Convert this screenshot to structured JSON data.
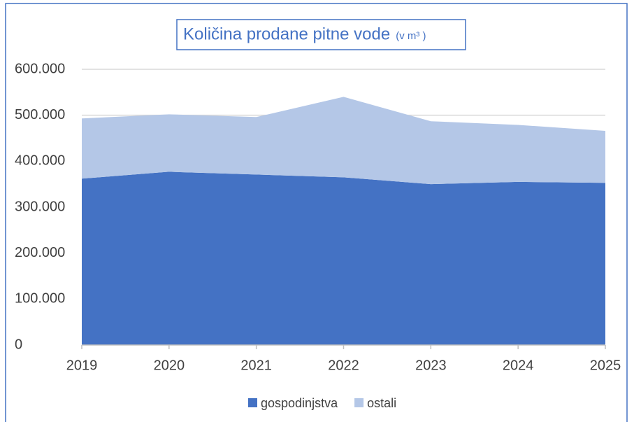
{
  "chart_data": {
    "type": "stacked_area",
    "title": "Količina prodane pitne vode",
    "title_unit": "(v m³ )",
    "categories": [
      "2019",
      "2020",
      "2021",
      "2022",
      "2023",
      "2024",
      "2025"
    ],
    "series": [
      {
        "name": "gospodinjstva",
        "color": "#4472c4",
        "values": [
          362000,
          377000,
          371000,
          365000,
          350000,
          355000,
          353000
        ]
      },
      {
        "name": "ostali",
        "color": "#b4c7e7",
        "values": [
          131000,
          125000,
          125000,
          175000,
          137000,
          124000,
          113000
        ]
      }
    ],
    "ylim": [
      0,
      600000
    ],
    "yticks": [
      0,
      {
        "value": 100000,
        "label": "100.000"
      },
      {
        "value": 200000,
        "label": "200.000"
      },
      {
        "value": 300000,
        "label": "300.000"
      },
      {
        "value": 400000,
        "label": "400.000"
      },
      {
        "value": 500000,
        "label": "500.000"
      },
      {
        "value": 600000,
        "label": "600.000"
      }
    ],
    "grid": true,
    "legend": "bottom"
  }
}
